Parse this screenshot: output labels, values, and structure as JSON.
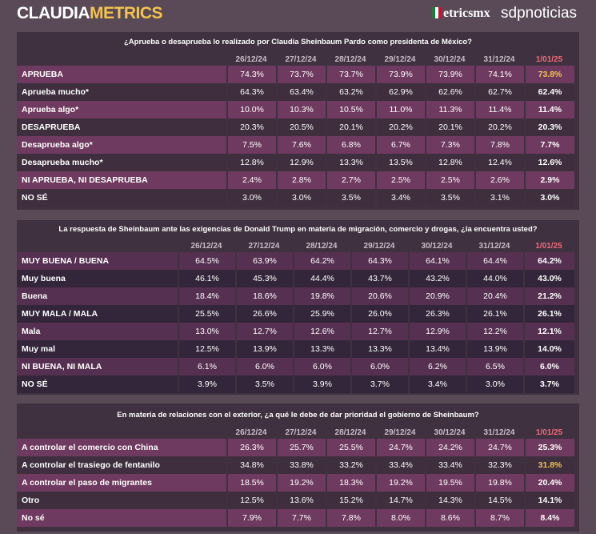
{
  "brand": {
    "part1": "CLAUDIA",
    "part2": "METRICS",
    "partner1": "etricsmx",
    "partner2": "sdpnoticias"
  },
  "dates": [
    "26/12/24",
    "27/12/24",
    "28/12/24",
    "29/12/24",
    "30/12/24",
    "31/12/24",
    "1/01/25"
  ],
  "tables": [
    {
      "question": "¿Aprueba o desaprueba lo realizado por Claudia Sheinbaum Pardo como presidenta de México?",
      "rows": [
        {
          "label": "APRUEBA",
          "values": [
            "74.3%",
            "73.7%",
            "73.7%",
            "73.9%",
            "73.9%",
            "74.1%",
            "73.8%"
          ],
          "highlight": true
        },
        {
          "label": "Aprueba mucho*",
          "values": [
            "64.3%",
            "63.4%",
            "63.2%",
            "62.9%",
            "62.6%",
            "62.7%",
            "62.4%"
          ]
        },
        {
          "label": "Aprueba algo*",
          "values": [
            "10.0%",
            "10.3%",
            "10.5%",
            "11.0%",
            "11.3%",
            "11.4%",
            "11.4%"
          ]
        },
        {
          "label": "DESAPRUEBA",
          "values": [
            "20.3%",
            "20.5%",
            "20.1%",
            "20.2%",
            "20.1%",
            "20.2%",
            "20.3%"
          ]
        },
        {
          "label": "Desaprueba algo*",
          "values": [
            "7.5%",
            "7.6%",
            "6.8%",
            "6.7%",
            "7.3%",
            "7.8%",
            "7.7%"
          ]
        },
        {
          "label": "Desaprueba mucho*",
          "values": [
            "12.8%",
            "12.9%",
            "13.3%",
            "13.5%",
            "12.8%",
            "12.4%",
            "12.6%"
          ]
        },
        {
          "label": "NI APRUEBA, NI DESAPRUEBA",
          "values": [
            "2.4%",
            "2.8%",
            "2.7%",
            "2.5%",
            "2.5%",
            "2.6%",
            "2.9%"
          ]
        },
        {
          "label": "NO SÉ",
          "values": [
            "3.0%",
            "3.0%",
            "3.5%",
            "3.4%",
            "3.5%",
            "3.1%",
            "3.0%"
          ]
        }
      ]
    },
    {
      "question": "La respuesta de Sheinbaum ante las exigencias de Donald Trump en materia de migración, comercio y drogas, ¿la encuentra usted?",
      "rows": [
        {
          "label": "MUY BUENA / BUENA",
          "values": [
            "64.5%",
            "63.9%",
            "64.2%",
            "64.3%",
            "64.1%",
            "64.4%",
            "64.2%"
          ]
        },
        {
          "label": "Muy buena",
          "values": [
            "46.1%",
            "45.3%",
            "44.4%",
            "43.7%",
            "43.2%",
            "44.0%",
            "43.0%"
          ]
        },
        {
          "label": "Buena",
          "values": [
            "18.4%",
            "18.6%",
            "19.8%",
            "20.6%",
            "20.9%",
            "20.4%",
            "21.2%"
          ]
        },
        {
          "label": "MUY MALA / MALA",
          "values": [
            "25.5%",
            "26.6%",
            "25.9%",
            "26.0%",
            "26.3%",
            "26.1%",
            "26.1%"
          ]
        },
        {
          "label": "Mala",
          "values": [
            "13.0%",
            "12.7%",
            "12.6%",
            "12.7%",
            "12.9%",
            "12.2%",
            "12.1%"
          ]
        },
        {
          "label": "Muy mal",
          "values": [
            "12.5%",
            "13.9%",
            "13.3%",
            "13.3%",
            "13.4%",
            "13.9%",
            "14.0%"
          ]
        },
        {
          "label": "NI BUENA, NI MALA",
          "values": [
            "6.1%",
            "6.0%",
            "6.0%",
            "6.0%",
            "6.2%",
            "6.5%",
            "6.0%"
          ]
        },
        {
          "label": "NO SÉ",
          "values": [
            "3.9%",
            "3.5%",
            "3.9%",
            "3.7%",
            "3.4%",
            "3.0%",
            "3.7%"
          ]
        }
      ]
    },
    {
      "question": "En materia de relaciones con el exterior, ¿a qué le debe de dar prioridad el gobierno de Sheinbaum?",
      "rows": [
        {
          "label": "A controlar el comercio con China",
          "values": [
            "26.3%",
            "25.7%",
            "25.5%",
            "24.7%",
            "24.2%",
            "24.7%",
            "25.3%"
          ]
        },
        {
          "label": "A controlar el trasiego de fentanilo",
          "values": [
            "34.8%",
            "33.8%",
            "33.2%",
            "33.4%",
            "33.4%",
            "32.3%",
            "31.8%"
          ],
          "highlight": true
        },
        {
          "label": "A controlar el paso de migrantes",
          "values": [
            "18.5%",
            "19.2%",
            "18.3%",
            "19.2%",
            "19.5%",
            "19.8%",
            "20.4%"
          ]
        },
        {
          "label": "Otro",
          "values": [
            "12.5%",
            "13.6%",
            "15.2%",
            "14.7%",
            "14.3%",
            "14.5%",
            "14.1%"
          ]
        },
        {
          "label": "No sé",
          "values": [
            "7.9%",
            "7.7%",
            "7.8%",
            "8.0%",
            "8.6%",
            "8.7%",
            "8.4%"
          ]
        }
      ]
    }
  ]
}
